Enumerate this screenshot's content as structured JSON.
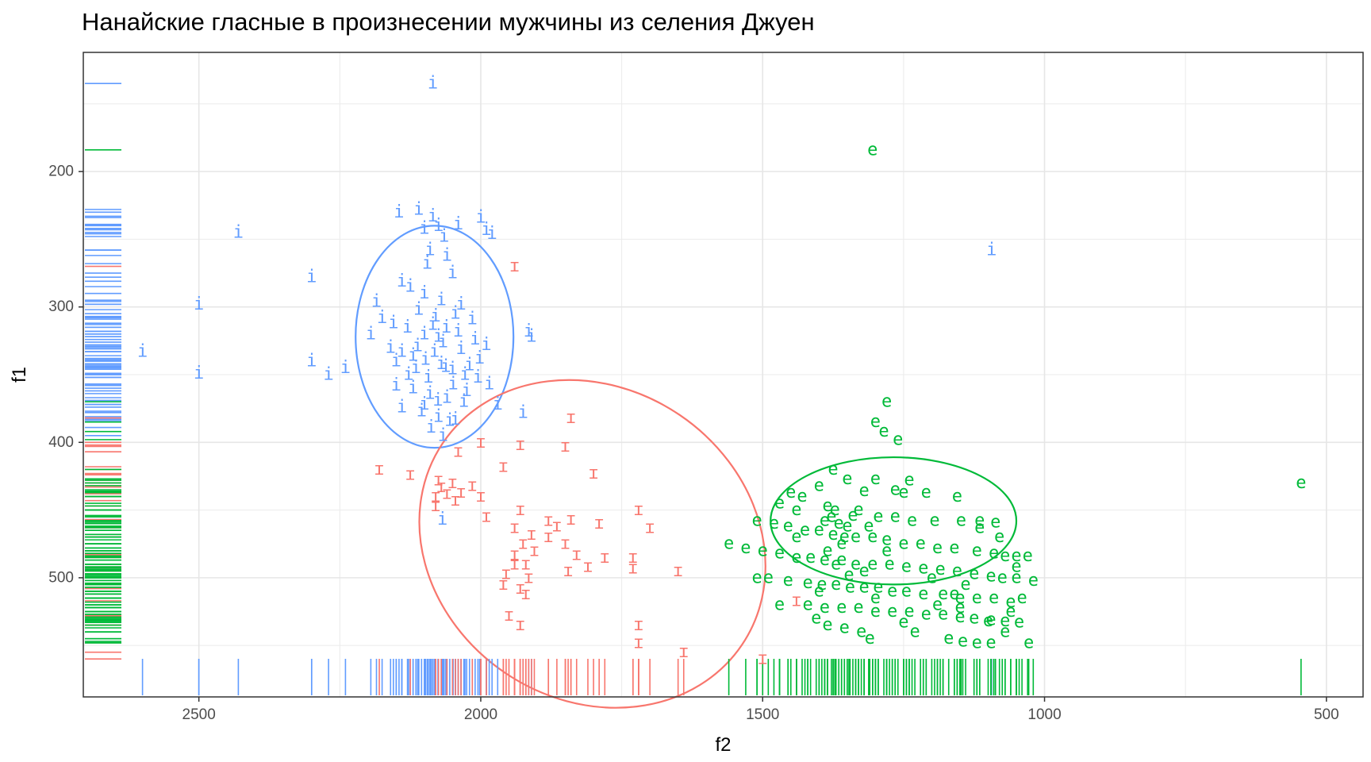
{
  "chart_data": {
    "type": "scatter",
    "title": "Нанайские гласные в произнесении мужчины из селения Джуен",
    "xlabel": "f2",
    "ylabel": "f1",
    "x_reversed": true,
    "y_reversed": true,
    "xlim": [
      2705,
      435
    ],
    "ylim": [
      112,
      588
    ],
    "x_ticks": [
      2500,
      2000,
      1500,
      1000,
      500
    ],
    "y_ticks": [
      200,
      300,
      400,
      500
    ],
    "grid": true,
    "rug": true,
    "ellipses": true,
    "legend": "none",
    "series": [
      {
        "label": "i",
        "color": "#619CFF",
        "ellipse": {
          "cx": 2082,
          "cy": 322,
          "rx": 140,
          "ry": 82
        },
        "points": [
          [
            2085,
            135
          ],
          [
            2430,
            245
          ],
          [
            2300,
            278
          ],
          [
            2500,
            298
          ],
          [
            2600,
            333
          ],
          [
            2500,
            349
          ],
          [
            2300,
            340
          ],
          [
            2270,
            350
          ],
          [
            2240,
            345
          ],
          [
            1915,
            318
          ],
          [
            1910,
            322
          ],
          [
            2145,
            230
          ],
          [
            2110,
            228
          ],
          [
            2085,
            233
          ],
          [
            2040,
            239
          ],
          [
            2000,
            234
          ],
          [
            1990,
            243
          ],
          [
            1980,
            246
          ],
          [
            2075,
            240
          ],
          [
            2100,
            242
          ],
          [
            2065,
            248
          ],
          [
            2090,
            258
          ],
          [
            2060,
            262
          ],
          [
            2095,
            268
          ],
          [
            2050,
            275
          ],
          [
            2140,
            281
          ],
          [
            2125,
            285
          ],
          [
            2100,
            290
          ],
          [
            2070,
            295
          ],
          [
            2035,
            298
          ],
          [
            2110,
            302
          ],
          [
            2080,
            307
          ],
          [
            2045,
            305
          ],
          [
            2015,
            309
          ],
          [
            2155,
            312
          ],
          [
            2130,
            315
          ],
          [
            2100,
            320
          ],
          [
            2075,
            322
          ],
          [
            2040,
            318
          ],
          [
            2010,
            324
          ],
          [
            1990,
            328
          ],
          [
            2160,
            330
          ],
          [
            2140,
            333
          ],
          [
            2120,
            336
          ],
          [
            2098,
            339
          ],
          [
            2070,
            342
          ],
          [
            2050,
            346
          ],
          [
            2028,
            350
          ],
          [
            2005,
            352
          ],
          [
            1985,
            357
          ],
          [
            2150,
            358
          ],
          [
            2120,
            360
          ],
          [
            2090,
            364
          ],
          [
            2060,
            367
          ],
          [
            2030,
            370
          ],
          [
            2140,
            374
          ],
          [
            2105,
            377
          ],
          [
            2075,
            381
          ],
          [
            2055,
            384
          ],
          [
            2088,
            389
          ],
          [
            2062,
            344
          ],
          [
            2082,
            333
          ],
          [
            2067,
            326
          ],
          [
            2093,
            352
          ],
          [
            2076,
            369
          ],
          [
            2049,
            357
          ],
          [
            2061,
            315
          ],
          [
            2115,
            345
          ],
          [
            2085,
            313
          ],
          [
            2175,
            308
          ],
          [
            2195,
            320
          ],
          [
            2185,
            296
          ],
          [
            2150,
            340
          ],
          [
            2035,
            331
          ],
          [
            2020,
            343
          ],
          [
            2002,
            338
          ],
          [
            2128,
            350
          ],
          [
            2100,
            372
          ],
          [
            2112,
            329
          ],
          [
            2025,
            362
          ],
          [
            2045,
            383
          ],
          [
            2067,
            395
          ],
          [
            1970,
            372
          ],
          [
            1925,
            378
          ],
          [
            2068,
            457
          ],
          [
            1094,
            258
          ]
        ]
      },
      {
        "label": "ɪ",
        "color": "#F8766D",
        "ellipse": {
          "cx": 1802,
          "cy": 475,
          "rx": 320,
          "ry": 115,
          "angle": 34
        },
        "points": [
          [
            1940,
            270
          ],
          [
            1840,
            382
          ],
          [
            1800,
            423
          ],
          [
            1850,
            403
          ],
          [
            1930,
            402
          ],
          [
            2000,
            400
          ],
          [
            2040,
            407
          ],
          [
            1960,
            418
          ],
          [
            2180,
            420
          ],
          [
            2125,
            424
          ],
          [
            2075,
            428
          ],
          [
            2070,
            433
          ],
          [
            2080,
            440
          ],
          [
            2080,
            447
          ],
          [
            2050,
            430
          ],
          [
            2035,
            437
          ],
          [
            2015,
            432
          ],
          [
            2045,
            443
          ],
          [
            2060,
            438
          ],
          [
            2000,
            440
          ],
          [
            1990,
            455
          ],
          [
            1930,
            450
          ],
          [
            1940,
            463
          ],
          [
            1925,
            475
          ],
          [
            1940,
            483
          ],
          [
            1940,
            490
          ],
          [
            1955,
            497
          ],
          [
            1920,
            490
          ],
          [
            1915,
            500
          ],
          [
            1930,
            508
          ],
          [
            1920,
            512
          ],
          [
            1960,
            505
          ],
          [
            1910,
            468
          ],
          [
            1905,
            480
          ],
          [
            1880,
            470
          ],
          [
            1865,
            462
          ],
          [
            1850,
            475
          ],
          [
            1830,
            483
          ],
          [
            1845,
            495
          ],
          [
            1810,
            492
          ],
          [
            1780,
            485
          ],
          [
            1730,
            485
          ],
          [
            1730,
            493
          ],
          [
            1880,
            458
          ],
          [
            1840,
            457
          ],
          [
            1790,
            460
          ],
          [
            1720,
            450
          ],
          [
            1700,
            463
          ],
          [
            1650,
            495
          ],
          [
            1950,
            528
          ],
          [
            1930,
            535
          ],
          [
            1720,
            535
          ],
          [
            1720,
            548
          ],
          [
            1640,
            555
          ],
          [
            1500,
            560
          ],
          [
            1440,
            517
          ]
        ]
      },
      {
        "label": "e",
        "color": "#00BA38",
        "ellipse": {
          "cx": 1268,
          "cy": 458,
          "rx": 218,
          "ry": 47
        },
        "points": [
          [
            1305,
            184
          ],
          [
            1280,
            370
          ],
          [
            1300,
            385
          ],
          [
            1285,
            392
          ],
          [
            1260,
            398
          ],
          [
            1375,
            420
          ],
          [
            1350,
            427
          ],
          [
            1300,
            427
          ],
          [
            1240,
            428
          ],
          [
            1155,
            440
          ],
          [
            1400,
            432
          ],
          [
            1320,
            436
          ],
          [
            1430,
            440
          ],
          [
            1265,
            435
          ],
          [
            1250,
            437
          ],
          [
            1210,
            437
          ],
          [
            1450,
            437
          ],
          [
            1470,
            445
          ],
          [
            1440,
            450
          ],
          [
            1385,
            447
          ],
          [
            1330,
            450
          ],
          [
            1295,
            455
          ],
          [
            1265,
            455
          ],
          [
            1235,
            458
          ],
          [
            1195,
            458
          ],
          [
            1148,
            458
          ],
          [
            1115,
            458
          ],
          [
            1087,
            459
          ],
          [
            1510,
            458
          ],
          [
            1480,
            460
          ],
          [
            1455,
            462
          ],
          [
            1425,
            465
          ],
          [
            1400,
            465
          ],
          [
            1375,
            468
          ],
          [
            1355,
            470
          ],
          [
            1335,
            470
          ],
          [
            1305,
            470
          ],
          [
            1280,
            472
          ],
          [
            1250,
            475
          ],
          [
            1220,
            475
          ],
          [
            1190,
            478
          ],
          [
            1160,
            478
          ],
          [
            1120,
            480
          ],
          [
            1090,
            482
          ],
          [
            1070,
            484
          ],
          [
            1050,
            484
          ],
          [
            1030,
            484
          ],
          [
            1560,
            475
          ],
          [
            1530,
            478
          ],
          [
            1500,
            480
          ],
          [
            1470,
            482
          ],
          [
            1440,
            485
          ],
          [
            1415,
            485
          ],
          [
            1390,
            487
          ],
          [
            1360,
            487
          ],
          [
            1335,
            490
          ],
          [
            1305,
            490
          ],
          [
            1275,
            490
          ],
          [
            1245,
            492
          ],
          [
            1215,
            493
          ],
          [
            1185,
            494
          ],
          [
            1155,
            495
          ],
          [
            1125,
            497
          ],
          [
            1095,
            499
          ],
          [
            1075,
            500
          ],
          [
            1050,
            500
          ],
          [
            1020,
            502
          ],
          [
            1490,
            500
          ],
          [
            1455,
            502
          ],
          [
            1420,
            504
          ],
          [
            1395,
            505
          ],
          [
            1370,
            505
          ],
          [
            1345,
            507
          ],
          [
            1320,
            507
          ],
          [
            1295,
            507
          ],
          [
            1270,
            510
          ],
          [
            1245,
            510
          ],
          [
            1215,
            512
          ],
          [
            1180,
            512
          ],
          [
            1150,
            515
          ],
          [
            1120,
            515
          ],
          [
            1090,
            515
          ],
          [
            1060,
            518
          ],
          [
            1420,
            520
          ],
          [
            1390,
            522
          ],
          [
            1360,
            522
          ],
          [
            1330,
            522
          ],
          [
            1300,
            525
          ],
          [
            1270,
            525
          ],
          [
            1240,
            525
          ],
          [
            1210,
            527
          ],
          [
            1180,
            527
          ],
          [
            1150,
            529
          ],
          [
            1125,
            530
          ],
          [
            1095,
            531
          ],
          [
            1070,
            532
          ],
          [
            1045,
            533
          ],
          [
            1385,
            535
          ],
          [
            1355,
            537
          ],
          [
            1325,
            540
          ],
          [
            1170,
            545
          ],
          [
            1145,
            547
          ],
          [
            1120,
            548
          ],
          [
            1095,
            548
          ],
          [
            1378,
            455
          ],
          [
            1365,
            460
          ],
          [
            1372,
            450
          ],
          [
            1350,
            462
          ],
          [
            1390,
            458
          ],
          [
            1340,
            454
          ],
          [
            1312,
            462
          ],
          [
            1360,
            475
          ],
          [
            1385,
            480
          ],
          [
            1370,
            490
          ],
          [
            1347,
            498
          ],
          [
            1320,
            495
          ],
          [
            1028,
            548
          ],
          [
            1230,
            540
          ],
          [
            1310,
            545
          ],
          [
            1400,
            510
          ],
          [
            1405,
            530
          ],
          [
            1470,
            520
          ],
          [
            1510,
            500
          ],
          [
            1440,
            470
          ],
          [
            1300,
            515
          ],
          [
            1250,
            533
          ],
          [
            1150,
            522
          ],
          [
            1200,
            500
          ],
          [
            1280,
            480
          ],
          [
            1100,
            532
          ],
          [
            1070,
            540
          ],
          [
            1060,
            525
          ],
          [
            1040,
            515
          ],
          [
            1050,
            492
          ],
          [
            1080,
            470
          ],
          [
            1115,
            463
          ],
          [
            1140,
            505
          ],
          [
            1160,
            512
          ],
          [
            1190,
            520
          ],
          [
            545,
            430
          ]
        ]
      }
    ]
  }
}
